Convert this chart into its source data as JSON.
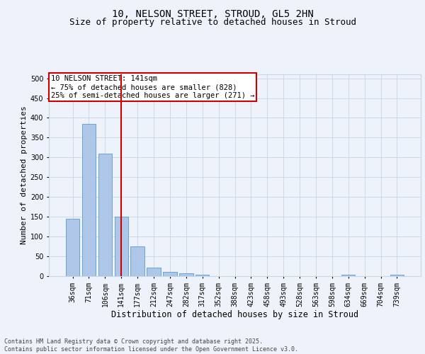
{
  "title1": "10, NELSON STREET, STROUD, GL5 2HN",
  "title2": "Size of property relative to detached houses in Stroud",
  "xlabel": "Distribution of detached houses by size in Stroud",
  "ylabel": "Number of detached properties",
  "categories": [
    "36sqm",
    "71sqm",
    "106sqm",
    "141sqm",
    "177sqm",
    "212sqm",
    "247sqm",
    "282sqm",
    "317sqm",
    "352sqm",
    "388sqm",
    "423sqm",
    "458sqm",
    "493sqm",
    "528sqm",
    "563sqm",
    "598sqm",
    "634sqm",
    "669sqm",
    "704sqm",
    "739sqm"
  ],
  "values": [
    145,
    385,
    310,
    150,
    75,
    22,
    10,
    8,
    4,
    0,
    0,
    0,
    0,
    0,
    0,
    0,
    0,
    4,
    0,
    0,
    4
  ],
  "bar_color": "#aec6e8",
  "bar_edge_color": "#5b9bd5",
  "vline_color": "#cc0000",
  "annotation_line1": "10 NELSON STREET: 141sqm",
  "annotation_line2": "← 75% of detached houses are smaller (828)",
  "annotation_line3": "25% of semi-detached houses are larger (271) →",
  "annotation_box_color": "#ffffff",
  "annotation_box_edge_color": "#cc0000",
  "ylim": [
    0,
    510
  ],
  "yticks": [
    0,
    50,
    100,
    150,
    200,
    250,
    300,
    350,
    400,
    450,
    500
  ],
  "background_color": "#eef2fa",
  "grid_color": "#c8d4e8",
  "footer_text": "Contains HM Land Registry data © Crown copyright and database right 2025.\nContains public sector information licensed under the Open Government Licence v3.0.",
  "title1_fontsize": 10,
  "title2_fontsize": 9,
  "xlabel_fontsize": 8.5,
  "ylabel_fontsize": 8,
  "tick_fontsize": 7,
  "annotation_fontsize": 7.5,
  "footer_fontsize": 6
}
